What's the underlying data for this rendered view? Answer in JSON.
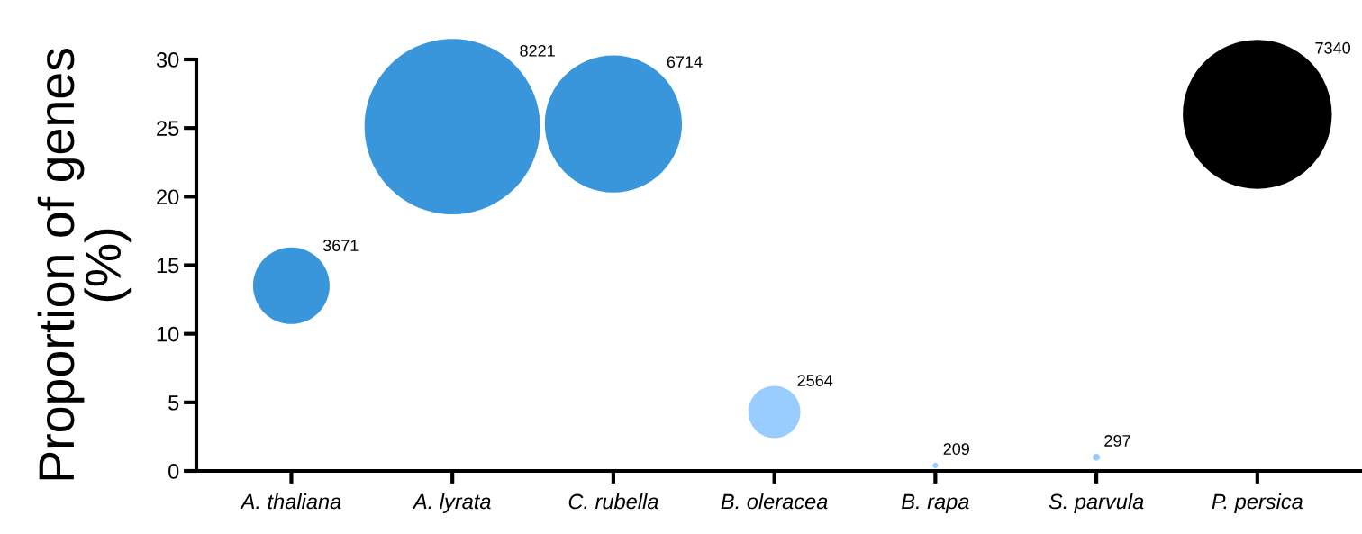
{
  "chart_data": {
    "type": "bubble",
    "ylabel": "Proportion of genes\n(%)",
    "categories": [
      "A. thaliana",
      "A. lyrata",
      "C. rubella",
      "B. oleracea",
      "B. rapa",
      "S. parvula",
      "P. persica"
    ],
    "values": [
      13.5,
      25.1,
      25.3,
      4.3,
      0.4,
      1.0,
      26.0
    ],
    "sizes": [
      0.19,
      1,
      0.61,
      0.088,
      0.001,
      0.0017,
      0.72
    ],
    "colors": [
      "#3a96db",
      "#3a96db",
      "#3a96db",
      "#99ccff",
      "#99ccff",
      "#99ccff",
      "#000000"
    ],
    "ylim": [
      0,
      30
    ],
    "yticks": [
      0,
      5,
      10,
      15,
      20,
      25,
      30
    ],
    "grid": false,
    "annotations": [
      "3671",
      "8221",
      "6714",
      "2564",
      "209",
      "297",
      "7340"
    ]
  }
}
